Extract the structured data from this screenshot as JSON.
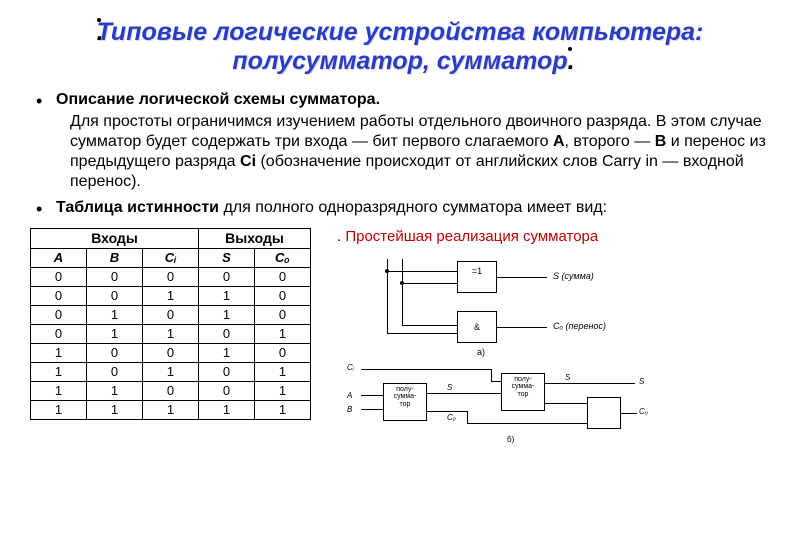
{
  "title_line": ". Типовые логические устройства компьютера: полусумматор, сумматор.",
  "bullets": {
    "b1": "Описание логической схемы сумматора.",
    "p1": "Для простоты ограничимся изучением работы отдельного двоичного разряда. В этом случае сумматор будет содержать три входа — бит первого слагаемого A, второго — B и перенос из предыдущего разряда Ci (обозначение происходит от английских слов Carry in — входной перенос).",
    "b2_prefix": "Таблица истинности",
    "b2_rest": " для полного одноразрядного сумматора имеет вид:"
  },
  "subhead": ". Простейшая реализация сумматора",
  "table": {
    "group_headers": [
      "Входы",
      "Выходы"
    ],
    "headers": [
      "A",
      "B",
      "Cᵢ",
      "S",
      "Cₒ"
    ],
    "rows": [
      [
        "0",
        "0",
        "0",
        "0",
        "0"
      ],
      [
        "0",
        "0",
        "1",
        "1",
        "0"
      ],
      [
        "0",
        "1",
        "0",
        "1",
        "0"
      ],
      [
        "0",
        "1",
        "1",
        "0",
        "1"
      ],
      [
        "1",
        "0",
        "0",
        "1",
        "0"
      ],
      [
        "1",
        "0",
        "1",
        "0",
        "1"
      ],
      [
        "1",
        "1",
        "0",
        "0",
        "1"
      ],
      [
        "1",
        "1",
        "1",
        "1",
        "1"
      ]
    ]
  },
  "diagA": {
    "gate1": "=1",
    "gate2": "&",
    "out1": "S (сумма)",
    "out2": "Cₒ (перенос)",
    "cap": "a)"
  },
  "diagB": {
    "box1": "полу-\nсумма-\nтор",
    "box2": "полу-\nсумма-\nтор",
    "in_ci": "Cᵢ",
    "in_a": "A",
    "in_b": "B",
    "mid_s": "S",
    "mid_c": "Cₒ",
    "out_s": "S",
    "out_c": "Cₒ",
    "cap": "б)"
  },
  "colors": {
    "title": "#2a3cc4",
    "subhead": "#c00000",
    "text": "#000000",
    "bg": "#ffffff",
    "border": "#000000"
  }
}
